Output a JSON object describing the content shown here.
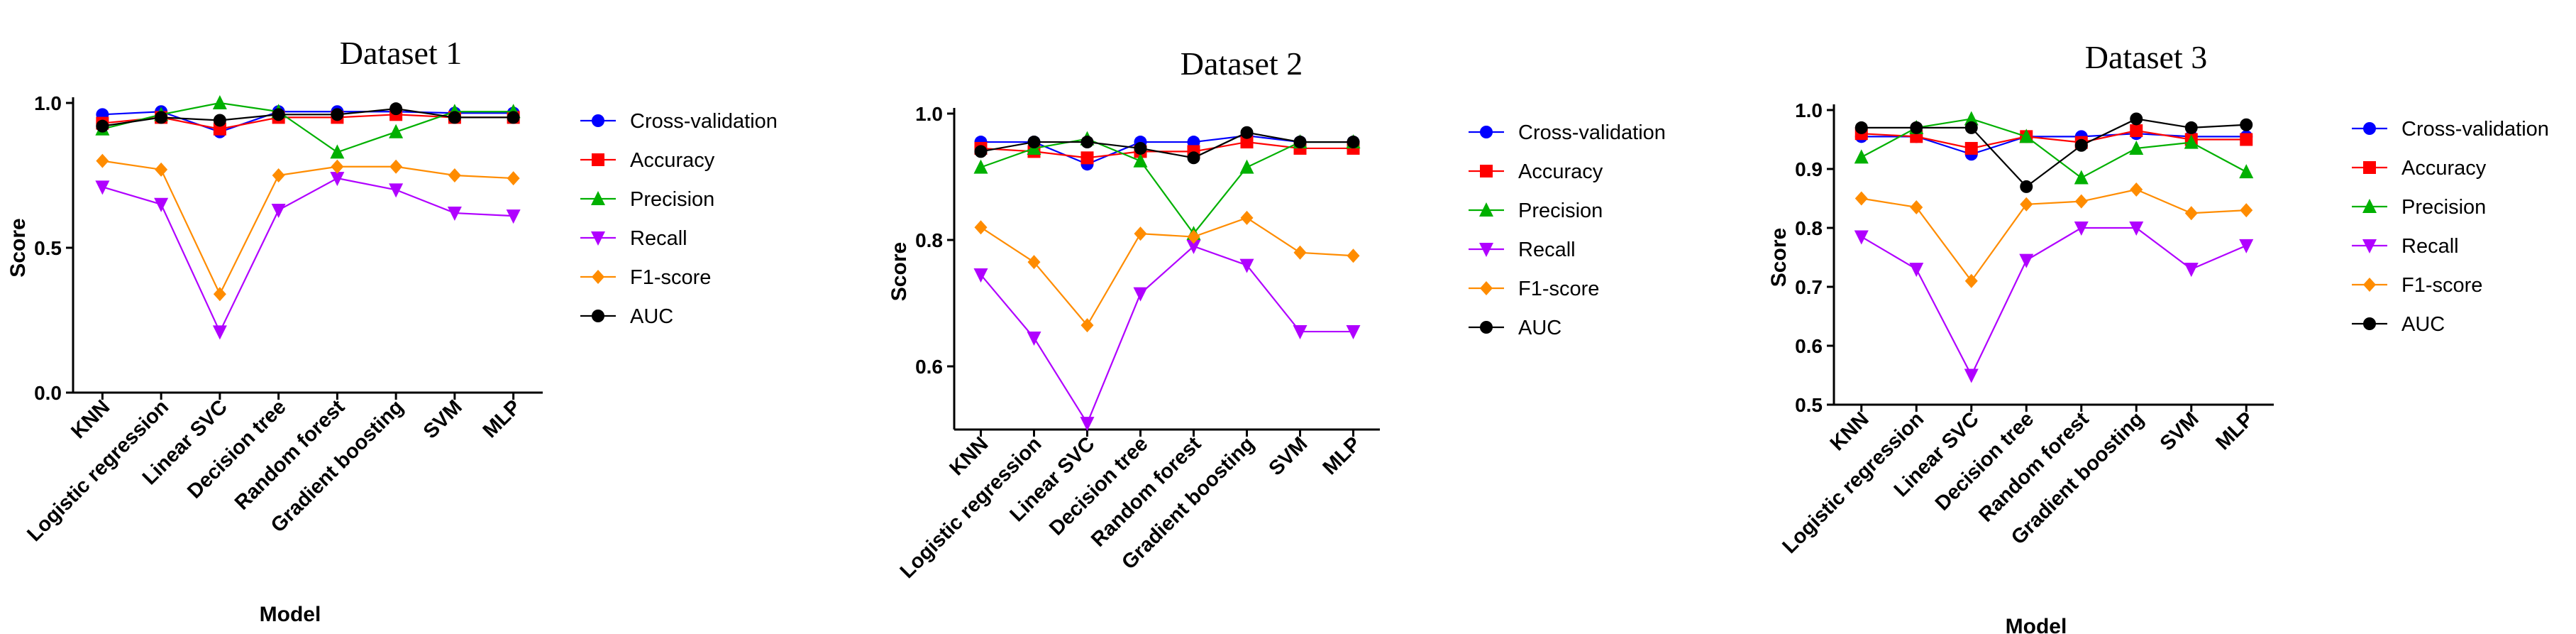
{
  "chart_data": [
    {
      "type": "line",
      "title": "Dataset 1",
      "xlabel": "Model",
      "ylabel": "Score",
      "ylim": [
        0.0,
        1.0
      ],
      "yticks": [
        "0.0",
        "0.5",
        "1.0"
      ],
      "categories": [
        "KNN",
        "Logistic regression",
        "Linear SVC",
        "Decision tree",
        "Random forest",
        "Gradient boosting",
        "SVM",
        "MLP"
      ],
      "series": [
        {
          "name": "Cross-validation",
          "color": "#0000ff",
          "marker": "circle",
          "values": [
            0.96,
            0.97,
            0.9,
            0.97,
            0.97,
            0.97,
            0.965,
            0.965
          ]
        },
        {
          "name": "Accuracy",
          "color": "#ff0000",
          "marker": "square",
          "values": [
            0.93,
            0.95,
            0.91,
            0.95,
            0.95,
            0.96,
            0.95,
            0.95
          ]
        },
        {
          "name": "Precision",
          "color": "#00b000",
          "marker": "triangle-up",
          "values": [
            0.91,
            0.96,
            1.0,
            0.97,
            0.83,
            0.9,
            0.97,
            0.97
          ]
        },
        {
          "name": "Recall",
          "color": "#b000ff",
          "marker": "triangle-down",
          "values": [
            0.71,
            0.65,
            0.21,
            0.63,
            0.74,
            0.7,
            0.62,
            0.61
          ]
        },
        {
          "name": "F1-score",
          "color": "#ff8c00",
          "marker": "diamond",
          "values": [
            0.8,
            0.77,
            0.34,
            0.75,
            0.78,
            0.78,
            0.75,
            0.74
          ]
        },
        {
          "name": "AUC",
          "color": "#000000",
          "marker": "circle",
          "values": [
            0.92,
            0.95,
            0.94,
            0.96,
            0.96,
            0.98,
            0.95,
            0.95
          ]
        }
      ]
    },
    {
      "type": "line",
      "title": "Dataset 2",
      "xlabel": "Model",
      "ylabel": "Score",
      "ylim": [
        0.5,
        1.0
      ],
      "yticks": [
        "0.6",
        "0.8",
        "1.0"
      ],
      "categories": [
        "KNN",
        "Logistic regression",
        "Linear SVC",
        "Decision tree",
        "Random forest",
        "Gradient boosting",
        "SVM",
        "MLP"
      ],
      "series": [
        {
          "name": "Cross-validation",
          "color": "#0000ff",
          "marker": "circle",
          "values": [
            0.955,
            0.955,
            0.92,
            0.955,
            0.955,
            0.965,
            0.955,
            0.955
          ]
        },
        {
          "name": "Accuracy",
          "color": "#ff0000",
          "marker": "square",
          "values": [
            0.945,
            0.94,
            0.93,
            0.94,
            0.94,
            0.955,
            0.945,
            0.945
          ]
        },
        {
          "name": "Precision",
          "color": "#00b000",
          "marker": "triangle-up",
          "values": [
            0.915,
            0.945,
            0.96,
            0.925,
            0.81,
            0.915,
            0.955,
            0.955
          ]
        },
        {
          "name": "Recall",
          "color": "#b000ff",
          "marker": "triangle-down",
          "values": [
            0.745,
            0.645,
            0.51,
            0.715,
            0.79,
            0.76,
            0.655,
            0.655
          ]
        },
        {
          "name": "F1-score",
          "color": "#ff8c00",
          "marker": "diamond",
          "values": [
            0.82,
            0.765,
            0.665,
            0.81,
            0.805,
            0.835,
            0.78,
            0.775
          ]
        },
        {
          "name": "AUC",
          "color": "#000000",
          "marker": "circle",
          "values": [
            0.94,
            0.955,
            0.955,
            0.945,
            0.93,
            0.97,
            0.955,
            0.955
          ]
        }
      ]
    },
    {
      "type": "line",
      "title": "Dataset 3",
      "xlabel": "Model",
      "ylabel": "Score",
      "ylim": [
        0.5,
        1.0
      ],
      "yticks": [
        "0.5",
        "0.6",
        "0.7",
        "0.8",
        "0.9",
        "1.0"
      ],
      "categories": [
        "KNN",
        "Logistic regression",
        "Linear SVC",
        "Decision tree",
        "Random forest",
        "Gradient boosting",
        "SVM",
        "MLP"
      ],
      "series": [
        {
          "name": "Cross-validation",
          "color": "#0000ff",
          "marker": "circle",
          "values": [
            0.955,
            0.955,
            0.925,
            0.955,
            0.955,
            0.96,
            0.955,
            0.955
          ]
        },
        {
          "name": "Accuracy",
          "color": "#ff0000",
          "marker": "square",
          "values": [
            0.96,
            0.955,
            0.935,
            0.955,
            0.945,
            0.965,
            0.95,
            0.95
          ]
        },
        {
          "name": "Precision",
          "color": "#00b000",
          "marker": "triangle-up",
          "values": [
            0.92,
            0.97,
            0.985,
            0.955,
            0.885,
            0.935,
            0.945,
            0.895
          ]
        },
        {
          "name": "Recall",
          "color": "#b000ff",
          "marker": "triangle-down",
          "values": [
            0.785,
            0.73,
            0.55,
            0.745,
            0.8,
            0.8,
            0.73,
            0.77
          ]
        },
        {
          "name": "F1-score",
          "color": "#ff8c00",
          "marker": "diamond",
          "values": [
            0.85,
            0.835,
            0.71,
            0.84,
            0.845,
            0.865,
            0.825,
            0.83
          ]
        },
        {
          "name": "AUC",
          "color": "#000000",
          "marker": "circle",
          "values": [
            0.97,
            0.97,
            0.97,
            0.87,
            0.94,
            0.985,
            0.97,
            0.975
          ]
        }
      ]
    }
  ]
}
